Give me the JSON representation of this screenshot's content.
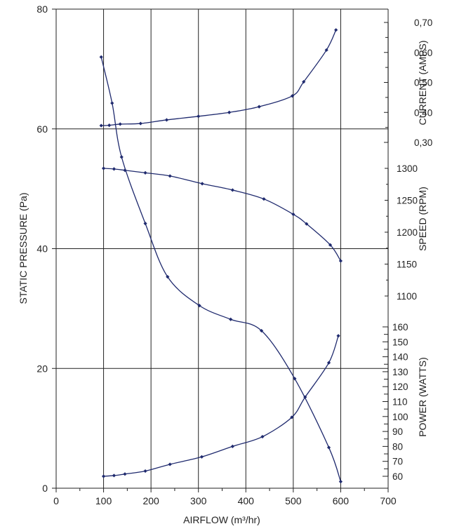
{
  "chart_data": {
    "type": "line",
    "xlabel": "AIRFLOW (m³/hr)",
    "xlim": [
      0,
      700
    ],
    "xticks": [
      0,
      100,
      200,
      300,
      400,
      500,
      600,
      700
    ],
    "ylabel": "STATIC PRESSURE (Pa)",
    "ylim": [
      0,
      80
    ],
    "yticks": [
      0,
      20,
      40,
      60,
      80
    ],
    "grid": true,
    "right_axes": [
      {
        "key": "current",
        "label": "CURRENT (AMPS)",
        "range": [
          0.3,
          0.7
        ],
        "ticks": [
          "0,30",
          "0,40",
          "0,50",
          "0,60",
          "0,70"
        ],
        "tick_values": [
          0.3,
          0.4,
          0.5,
          0.6,
          0.7
        ]
      },
      {
        "key": "speed",
        "label": "SPEED (RPM)",
        "range": [
          1100,
          1300
        ],
        "ticks": [
          "1100",
          "1150",
          "1200",
          "1250",
          "1300"
        ],
        "tick_values": [
          1100,
          1150,
          1200,
          1250,
          1300
        ]
      },
      {
        "key": "power",
        "label": "POWER (WATTS)",
        "range": [
          60,
          160
        ],
        "ticks": [
          "60",
          "70",
          "80",
          "90",
          "100",
          "110",
          "120",
          "130",
          "140",
          "150",
          "160"
        ],
        "tick_values": [
          60,
          70,
          80,
          90,
          100,
          110,
          120,
          130,
          140,
          150,
          160
        ]
      }
    ],
    "series": [
      {
        "axis": "left",
        "x": [
          95,
          118,
          138,
          188,
          235,
          302,
          368,
          433,
          503,
          575,
          600
        ],
        "y": [
          72,
          64.3,
          55.3,
          44.2,
          35.3,
          30.5,
          28.2,
          26.3,
          18.3,
          6.8,
          1.1
        ]
      },
      {
        "axis": "current",
        "x": [
          95,
          112,
          135,
          178,
          233,
          300,
          365,
          428,
          498,
          522,
          570,
          590
        ],
        "y": [
          0.356,
          0.357,
          0.361,
          0.363,
          0.375,
          0.387,
          0.4,
          0.419,
          0.455,
          0.502,
          0.608,
          0.675
        ]
      },
      {
        "axis": "speed",
        "x": [
          100,
          122,
          145,
          188,
          240,
          308,
          372,
          438,
          500,
          528,
          578,
          600
        ],
        "y": [
          1300,
          1299,
          1297,
          1293,
          1288,
          1276,
          1266,
          1252,
          1228,
          1213,
          1180,
          1155
        ]
      },
      {
        "axis": "power",
        "x": [
          100,
          122,
          145,
          188,
          240,
          307,
          372,
          435,
          497,
          525,
          575,
          595
        ],
        "y": [
          60,
          60.5,
          61.5,
          63.5,
          68,
          73,
          80,
          86.5,
          99.5,
          113,
          136,
          154
        ]
      }
    ]
  }
}
